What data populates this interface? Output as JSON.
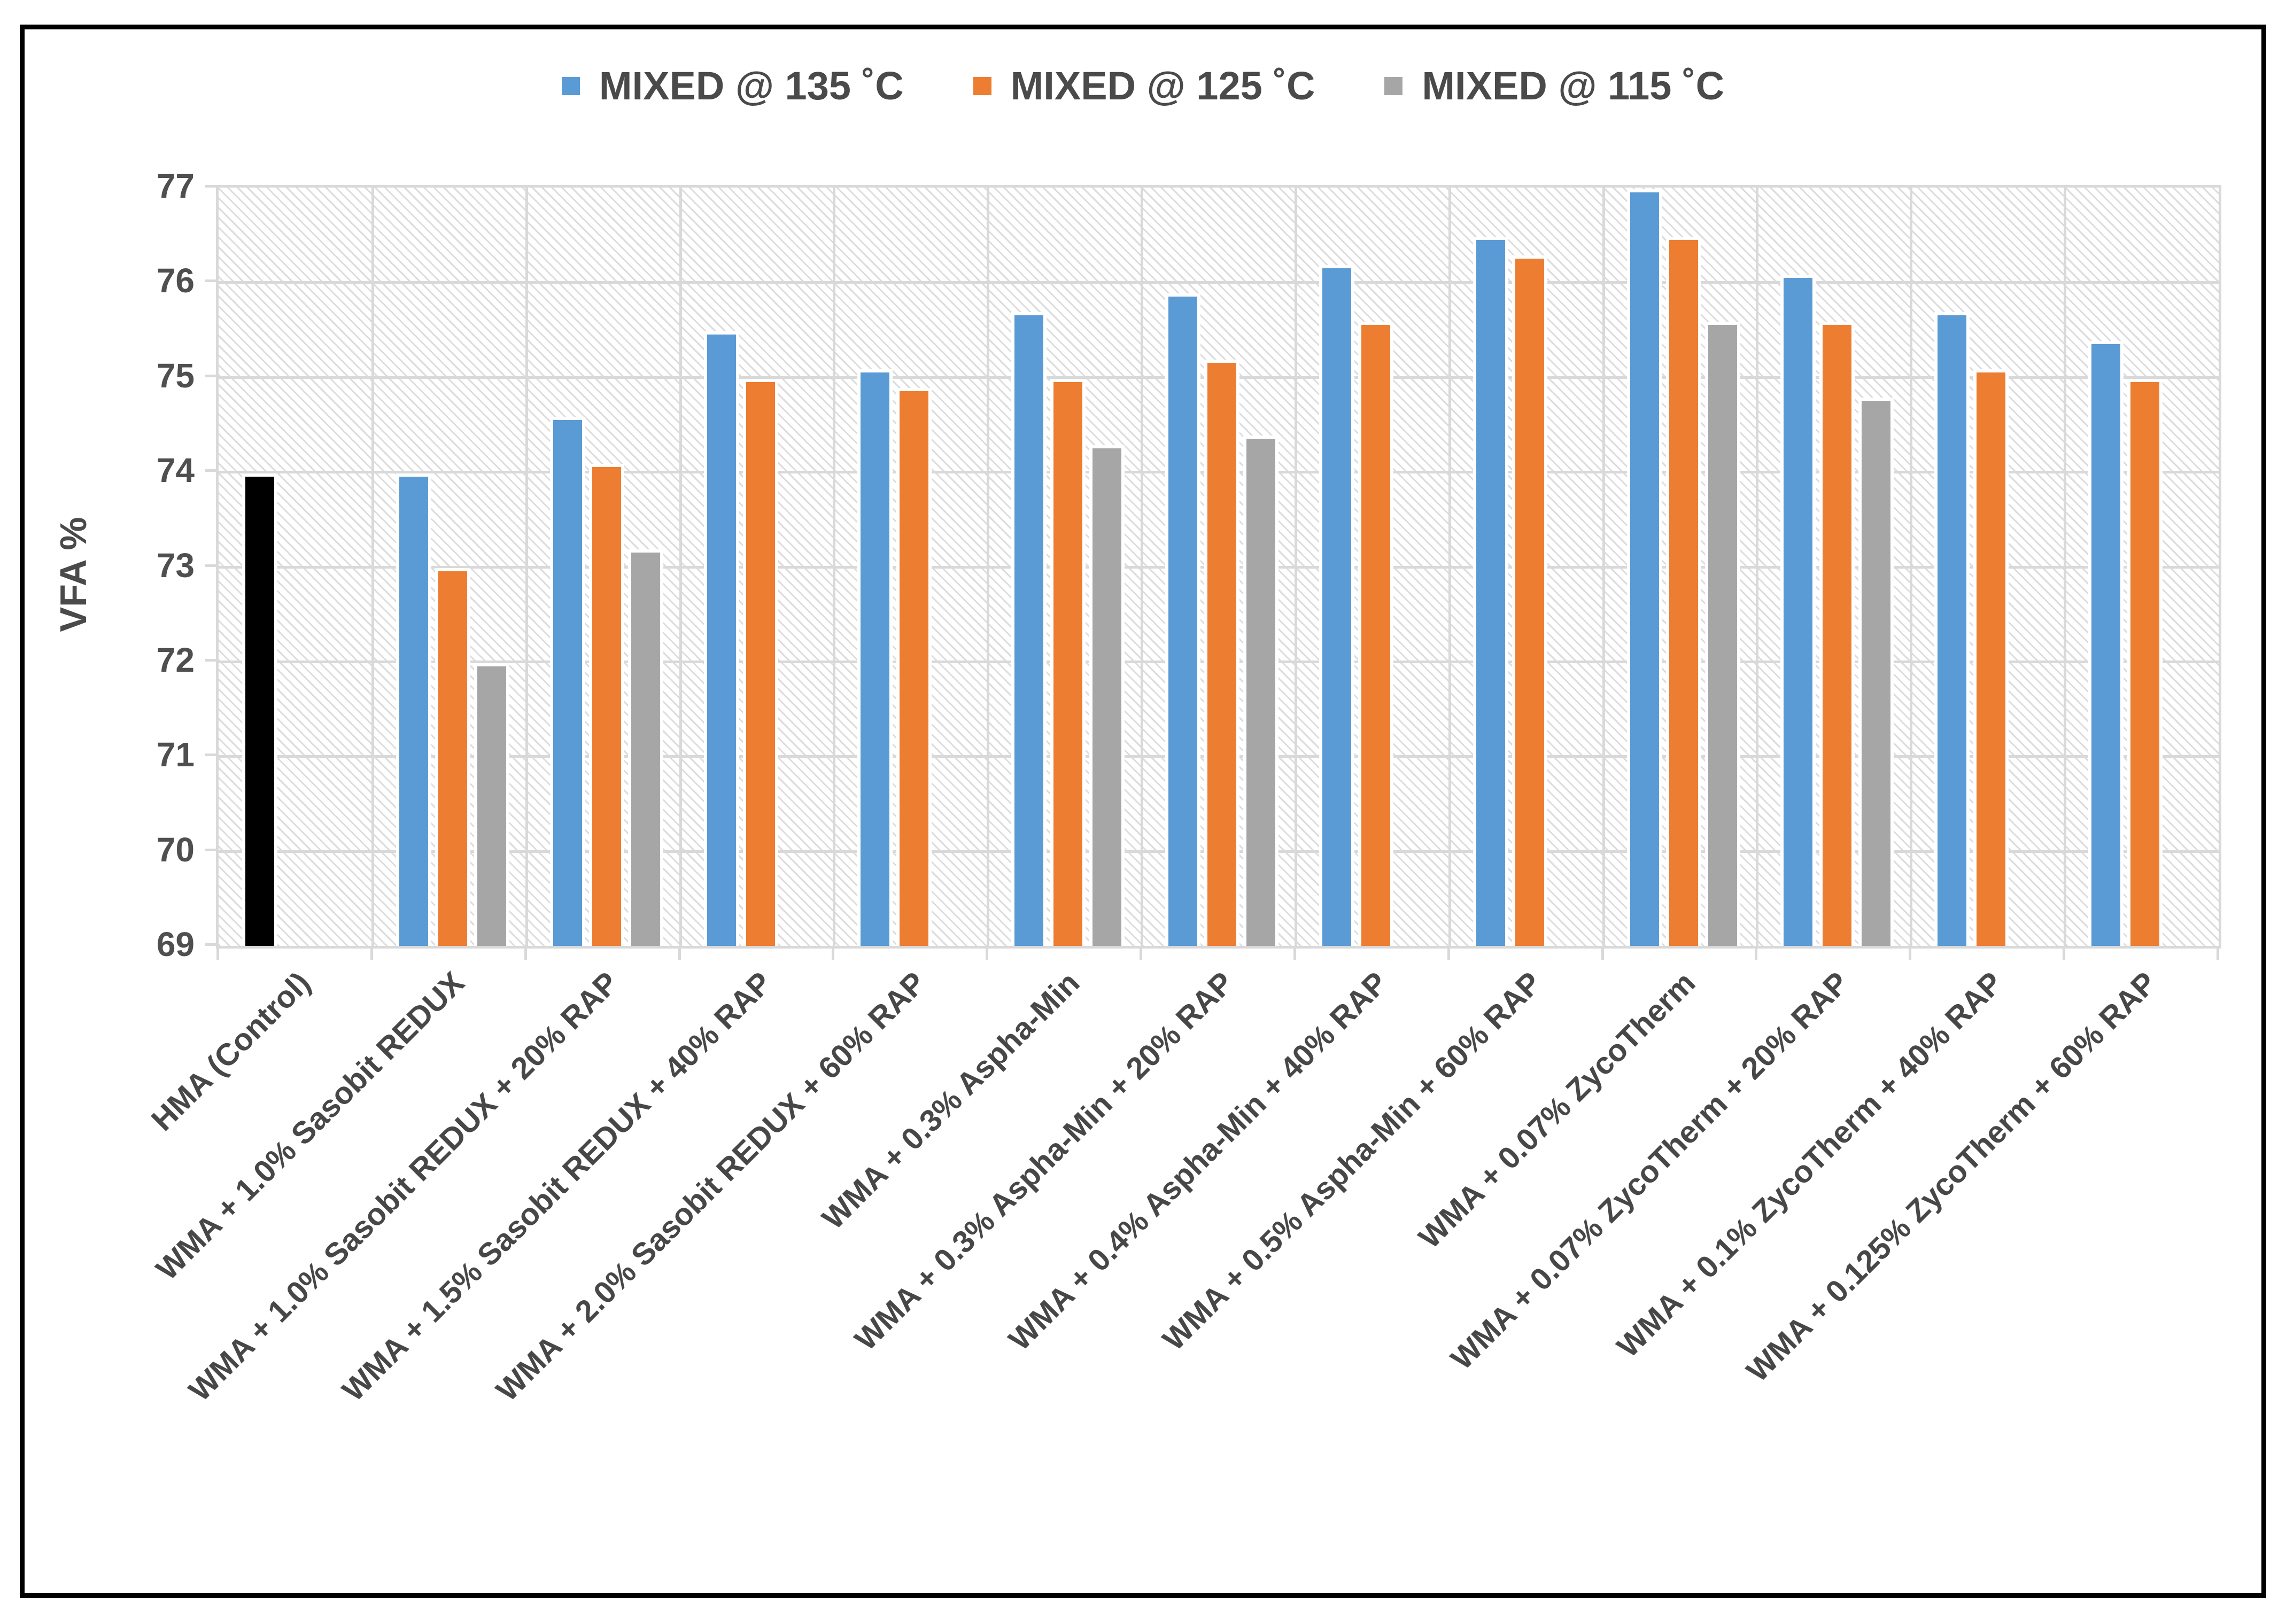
{
  "legend": {
    "items": [
      {
        "label": "MIXED @ 135 ˚C",
        "color": "#5B9BD5"
      },
      {
        "label": "MIXED @ 125 ˚C",
        "color": "#ED7D31"
      },
      {
        "label": "MIXED @ 115 ˚C",
        "color": "#A6A6A6"
      }
    ]
  },
  "chart_data": {
    "type": "bar",
    "title": "",
    "xlabel": "",
    "ylabel": "VFA %",
    "ylim": [
      69,
      77
    ],
    "yticks": [
      69,
      70,
      71,
      72,
      73,
      74,
      75,
      76,
      77
    ],
    "grid": true,
    "legend_position": "top",
    "plot_background": "diagonal-hatch",
    "gridline_color": "#D9D9D9",
    "categories": [
      "HMA (Control)",
      "WMA + 1.0% Sasobit REDUX",
      "WMA + 1.0% Sasobit REDUX + 20% RAP",
      "WMA + 1.5% Sasobit REDUX + 40% RAP",
      "WMA + 2.0% Sasobit REDUX + 60% RAP",
      "WMA + 0.3% Aspha-Min",
      "WMA + 0.3% Aspha-Min + 20% RAP",
      "WMA + 0.4% Aspha-Min + 40% RAP",
      "WMA + 0.5% Aspha-Min + 60% RAP",
      "WMA + 0.07% ZycoTherm",
      "WMA + 0.07% ZycoTherm + 20% RAP",
      "WMA + 0.1% ZycoTherm + 40% RAP",
      "WMA + 0.125% ZycoTherm + 60% RAP"
    ],
    "series": [
      {
        "name": "MIXED @ 135 ˚C",
        "color": "#5B9BD5",
        "values": [
          73.95,
          73.95,
          74.55,
          75.45,
          75.05,
          75.65,
          75.85,
          76.15,
          76.45,
          76.95,
          76.05,
          75.65,
          75.35
        ]
      },
      {
        "name": "MIXED @ 125 ˚C",
        "color": "#ED7D31",
        "values": [
          null,
          72.95,
          74.05,
          74.95,
          74.85,
          74.95,
          75.15,
          75.55,
          76.25,
          76.45,
          75.55,
          75.05,
          74.95
        ]
      },
      {
        "name": "MIXED @ 115 ˚C",
        "color": "#A6A6A6",
        "values": [
          null,
          71.95,
          73.15,
          null,
          null,
          74.25,
          74.35,
          null,
          null,
          75.55,
          74.75,
          null,
          null
        ]
      }
    ],
    "control_bar": {
      "category_index": 0,
      "series_index": 0,
      "color": "#000000"
    }
  }
}
